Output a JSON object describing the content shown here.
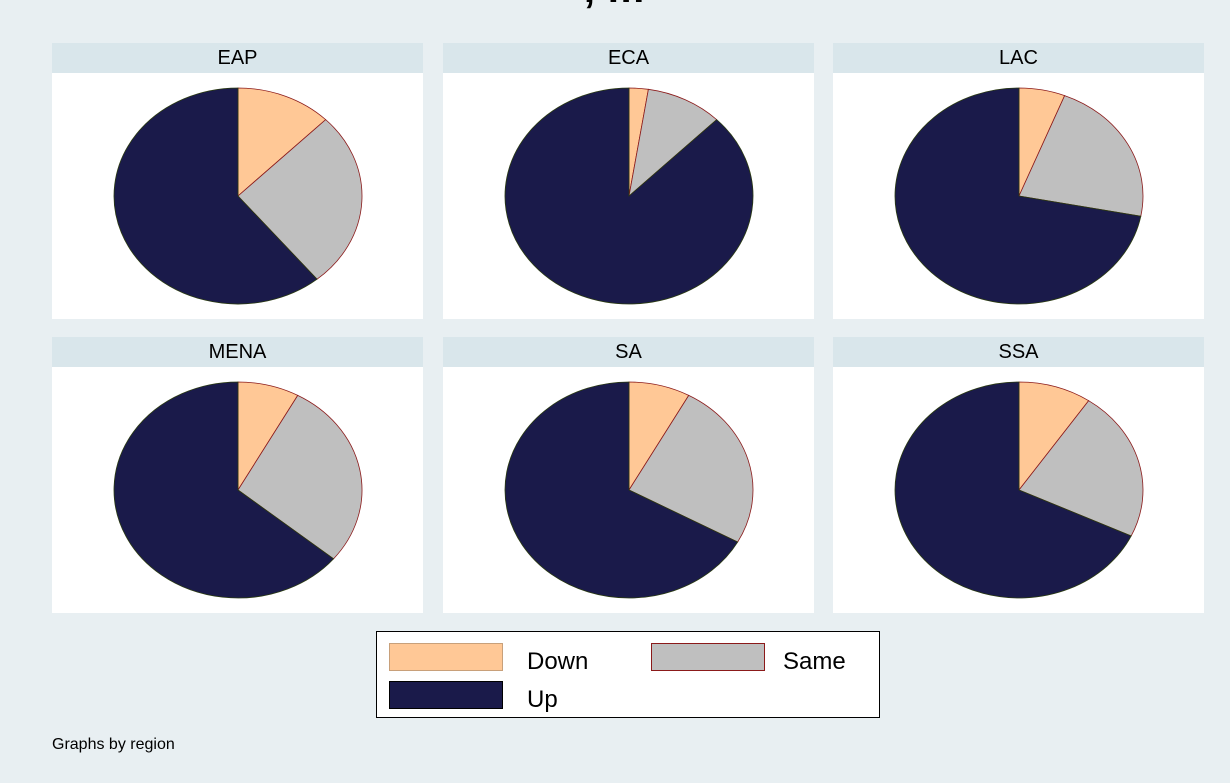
{
  "title_fragment": ", …",
  "note": "Graphs by region",
  "colors": {
    "Down": "#ffc896",
    "Same": "#bfbfbf",
    "Up": "#1a1a4a",
    "panel_bg": "#ffffff",
    "header_bg": "#d9e6eb",
    "page_bg": "#e8eff2"
  },
  "legend": {
    "down": "Down",
    "same": "Same",
    "up": "Up"
  },
  "chart_data": {
    "type": "pie",
    "series_order": [
      "Down",
      "Same",
      "Up"
    ],
    "panels": [
      {
        "label": "EAP",
        "values": {
          "Down": 12.5,
          "Same": 26.5,
          "Up": 61.0
        }
      },
      {
        "label": "ECA",
        "values": {
          "Down": 2.5,
          "Same": 10.0,
          "Up": 87.5
        }
      },
      {
        "label": "LAC",
        "values": {
          "Down": 6.0,
          "Same": 22.0,
          "Up": 72.0
        }
      },
      {
        "label": "MENA",
        "values": {
          "Down": 8.0,
          "Same": 28.0,
          "Up": 64.0
        }
      },
      {
        "label": "SA",
        "values": {
          "Down": 8.0,
          "Same": 25.0,
          "Up": 67.0
        }
      },
      {
        "label": "SSA",
        "values": {
          "Down": 9.5,
          "Same": 22.5,
          "Up": 68.0
        }
      }
    ]
  }
}
